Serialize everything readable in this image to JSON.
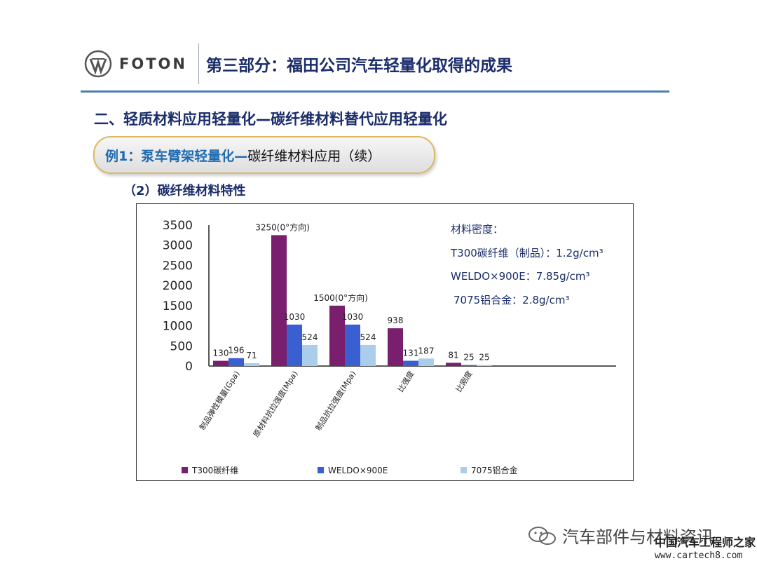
{
  "brand": {
    "logo_text": "FOTON"
  },
  "header": {
    "title": "第三部分：福田公司汽车轻量化取得的成果"
  },
  "section": {
    "title": "二、轻质材料应用轻量化—碳纤维材料替代应用轻量化"
  },
  "example": {
    "label_a": "例1：泵车臂架轻量化—",
    "label_b": "碳纤维材料应用（续）"
  },
  "subheading": "（2）碳纤维材料特性",
  "density_note": {
    "heading": "材料密度：",
    "lines": [
      "T300碳纤维（制品）：1.2g/cm³",
      "WELDO×900E：7.85g/cm³",
      "7075铝合金：2.8g/cm³"
    ]
  },
  "colors": {
    "series1": "#7a1f6e",
    "series2": "#3a5fd0",
    "series3": "#a9cdea",
    "accent": "#4d7fb3",
    "title": "#1b2d6b"
  },
  "chart_data": {
    "type": "bar",
    "categories": [
      "制品弹性模量(Gpa)",
      "原材料抗拉强度(Mpa)",
      "制品抗拉强度(Mpa)",
      "比强度",
      "比刚度"
    ],
    "series": [
      {
        "name": "T300碳纤维",
        "values": [
          130,
          3250,
          1500,
          938,
          81
        ]
      },
      {
        "name": "WELDO×900E",
        "values": [
          196,
          1030,
          1030,
          131,
          25
        ]
      },
      {
        "name": "7075铝合金",
        "values": [
          71,
          524,
          524,
          187,
          25
        ]
      }
    ],
    "data_labels": [
      [
        "130",
        "3250(0°方向)",
        "1500(0°方向)",
        "938",
        "81"
      ],
      [
        "196",
        "1030",
        "1030",
        "131",
        "25"
      ],
      [
        "71",
        "524",
        "524",
        "187",
        "25"
      ]
    ],
    "yticks": [
      "0",
      "500",
      "1000",
      "1500",
      "2000",
      "2500",
      "3000",
      "3500"
    ],
    "ylim": [
      0,
      3500
    ],
    "legend_position": "bottom",
    "grid": false
  },
  "watermark": {
    "channel": "汽车部件与材料资讯",
    "site_name": "中国汽车工程师之家",
    "url": "www.cartech8.com"
  }
}
